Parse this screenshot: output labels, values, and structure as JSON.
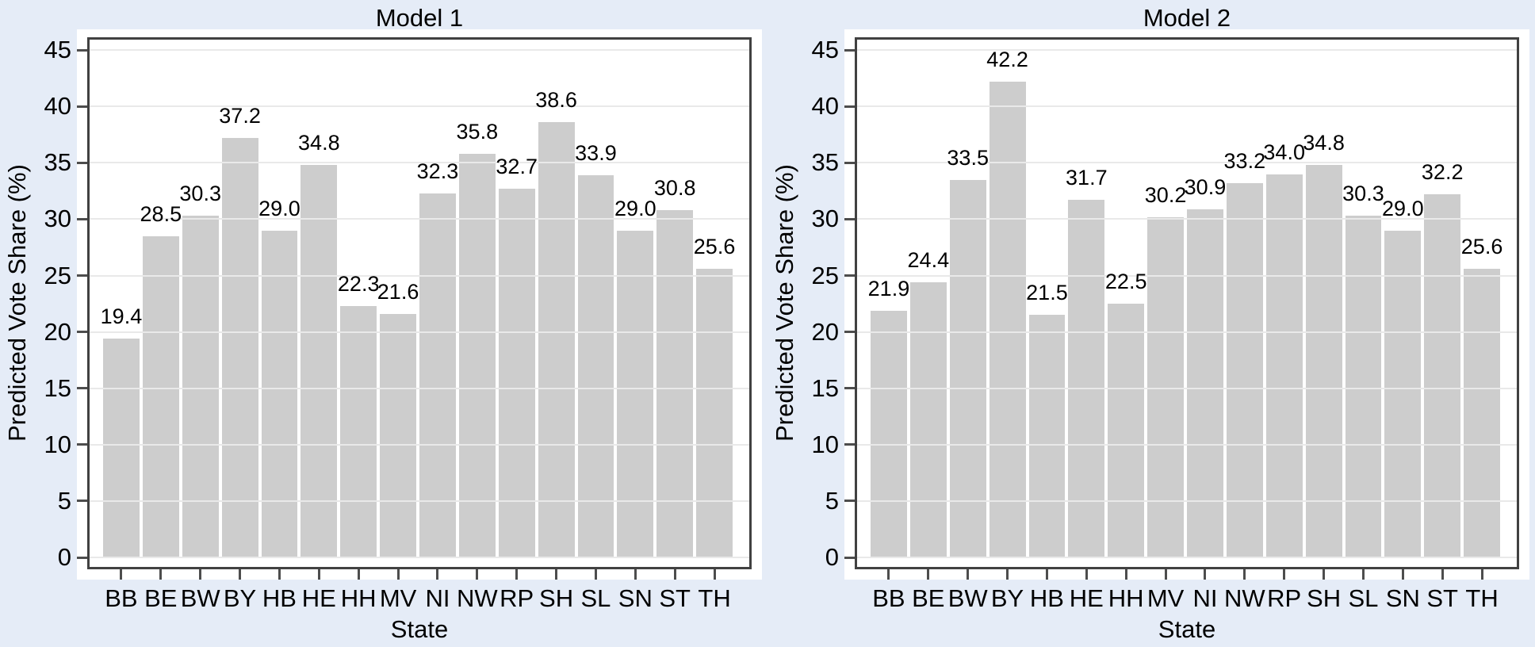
{
  "colors": {
    "figure_background": "#e5ecf7",
    "panel_background": "#ffffff",
    "bar_fill": "#cdcdcd",
    "gridline": "#e9e9e9",
    "frame": "#414141",
    "tick": "#4d4d4d",
    "text": "#000000"
  },
  "chart_data": [
    {
      "type": "bar",
      "title": "Model 1",
      "xlabel": "State",
      "ylabel": "Predicted Vote Share (%)",
      "categories": [
        "BB",
        "BE",
        "BW",
        "BY",
        "HB",
        "HE",
        "HH",
        "MV",
        "NI",
        "NW",
        "RP",
        "SH",
        "SL",
        "SN",
        "ST",
        "TH"
      ],
      "values": [
        19.4,
        28.5,
        30.3,
        37.2,
        29.0,
        34.8,
        22.3,
        21.6,
        32.3,
        35.8,
        32.7,
        38.6,
        33.9,
        29.0,
        30.8,
        25.6
      ],
      "bar_value_labels": [
        "19.4",
        "28.5",
        "30.3",
        "37.2",
        "29.0",
        "34.8",
        "22.3",
        "21.6",
        "32.3",
        "35.8",
        "32.7",
        "38.6",
        "33.9",
        "29.0",
        "30.8",
        "25.6"
      ],
      "ylim": [
        0,
        45
      ],
      "yticks": [
        0,
        5,
        10,
        15,
        20,
        25,
        30,
        35,
        40,
        45
      ],
      "ytick_labels": [
        "0",
        "5",
        "10",
        "15",
        "20",
        "25",
        "30",
        "35",
        "40",
        "45"
      ],
      "grid": true,
      "legend": false
    },
    {
      "type": "bar",
      "title": "Model 2",
      "xlabel": "State",
      "ylabel": "Predicted Vote Share (%)",
      "categories": [
        "BB",
        "BE",
        "BW",
        "BY",
        "HB",
        "HE",
        "HH",
        "MV",
        "NI",
        "NW",
        "RP",
        "SH",
        "SL",
        "SN",
        "ST",
        "TH"
      ],
      "values": [
        21.9,
        24.4,
        33.5,
        42.2,
        21.5,
        31.7,
        22.5,
        30.2,
        30.9,
        33.2,
        34.0,
        34.8,
        30.3,
        29.0,
        32.2,
        25.6
      ],
      "bar_value_labels": [
        "21.9",
        "24.4",
        "33.5",
        "42.2",
        "21.5",
        "31.7",
        "22.5",
        "30.2",
        "30.9",
        "33.2",
        "34.0",
        "34.8",
        "30.3",
        "29.0",
        "32.2",
        "25.6"
      ],
      "ylim": [
        0,
        45
      ],
      "yticks": [
        0,
        5,
        10,
        15,
        20,
        25,
        30,
        35,
        40,
        45
      ],
      "ytick_labels": [
        "0",
        "5",
        "10",
        "15",
        "20",
        "25",
        "30",
        "35",
        "40",
        "45"
      ],
      "grid": true,
      "legend": false
    }
  ]
}
